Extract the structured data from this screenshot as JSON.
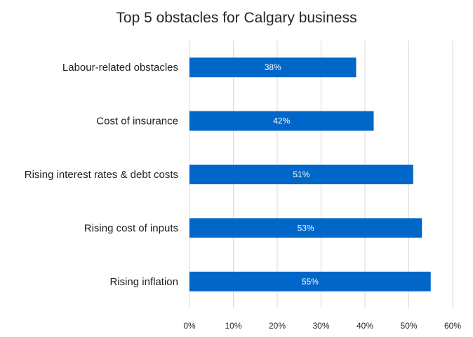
{
  "chart_data": {
    "type": "bar",
    "orientation": "horizontal",
    "title": "Top 5 obstacles for Calgary business",
    "categories": [
      "Labour-related obstacles",
      "Cost of insurance",
      "Rising interest rates & debt costs",
      "Rising cost of inputs",
      "Rising inflation"
    ],
    "values": [
      38,
      42,
      51,
      53,
      55
    ],
    "data_labels": [
      "38%",
      "42%",
      "51%",
      "53%",
      "55%"
    ],
    "xlim": [
      0,
      60
    ],
    "x_ticks": [
      "0%",
      "10%",
      "20%",
      "30%",
      "40%",
      "50%",
      "60%"
    ],
    "grid": "vertical",
    "legend": "none",
    "bar_color": "#0066c7",
    "grid_color": "#d9d9d9"
  }
}
